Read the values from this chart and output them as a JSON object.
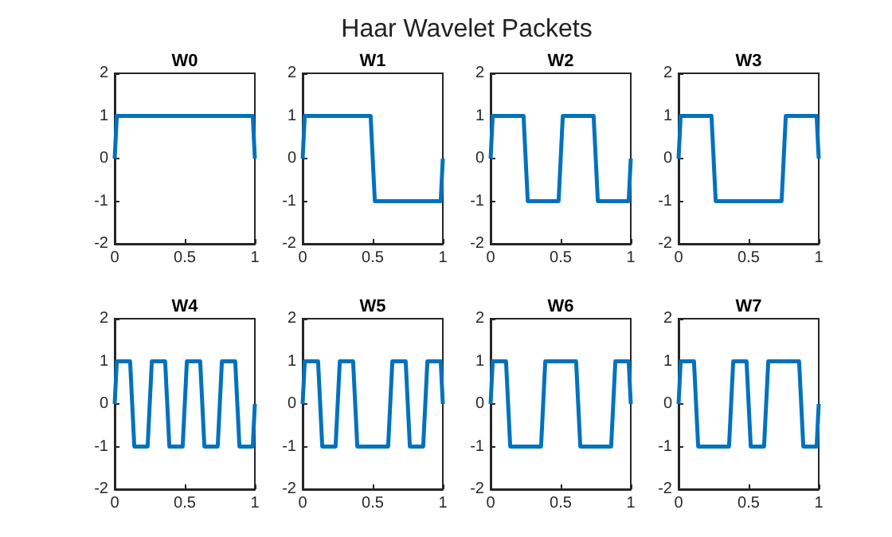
{
  "chart_data": [
    {
      "type": "line",
      "title": "W0",
      "annotations": [
        "Haar Wavelet Packets"
      ],
      "xlim": [
        0,
        1
      ],
      "xticks": [
        0,
        0.5,
        1
      ],
      "ylim": [
        -2,
        2
      ],
      "yticks": [
        -2,
        -1,
        0,
        1,
        2
      ],
      "grid": false,
      "series": [
        {
          "color": "#0072bd",
          "x": [
            0,
            0.015,
            0.985,
            1
          ],
          "values": [
            0,
            1,
            1,
            0
          ]
        }
      ]
    },
    {
      "type": "line",
      "title": "W1",
      "xlim": [
        0,
        1
      ],
      "xticks": [
        0,
        0.5,
        1
      ],
      "ylim": [
        -2,
        2
      ],
      "yticks": [
        -2,
        -1,
        0,
        1,
        2
      ],
      "grid": false,
      "series": [
        {
          "color": "#0072bd",
          "x": [
            0,
            0.015,
            0.485,
            0.515,
            0.985,
            1
          ],
          "values": [
            0,
            1,
            1,
            -1,
            -1,
            0
          ]
        }
      ]
    },
    {
      "type": "line",
      "title": "W2",
      "xlim": [
        0,
        1
      ],
      "xticks": [
        0,
        0.5,
        1
      ],
      "ylim": [
        -2,
        2
      ],
      "yticks": [
        -2,
        -1,
        0,
        1,
        2
      ],
      "grid": false,
      "series": [
        {
          "color": "#0072bd",
          "x": [
            0,
            0.015,
            0.235,
            0.265,
            0.485,
            0.515,
            0.735,
            0.765,
            0.985,
            1
          ],
          "values": [
            0,
            1,
            1,
            -1,
            -1,
            1,
            1,
            -1,
            -1,
            0
          ]
        }
      ]
    },
    {
      "type": "line",
      "title": "W3",
      "xlim": [
        0,
        1
      ],
      "xticks": [
        0,
        0.5,
        1
      ],
      "ylim": [
        -2,
        2
      ],
      "yticks": [
        -2,
        -1,
        0,
        1,
        2
      ],
      "grid": false,
      "series": [
        {
          "color": "#0072bd",
          "x": [
            0,
            0.015,
            0.235,
            0.265,
            0.735,
            0.765,
            0.985,
            1
          ],
          "values": [
            0,
            1,
            1,
            -1,
            -1,
            1,
            1,
            0
          ]
        }
      ]
    },
    {
      "type": "line",
      "title": "W4",
      "xlim": [
        0,
        1
      ],
      "xticks": [
        0,
        0.5,
        1
      ],
      "ylim": [
        -2,
        2
      ],
      "yticks": [
        -2,
        -1,
        0,
        1,
        2
      ],
      "grid": false,
      "series": [
        {
          "color": "#0072bd",
          "x": [
            0,
            0.015,
            0.11,
            0.14,
            0.235,
            0.265,
            0.36,
            0.39,
            0.485,
            0.515,
            0.61,
            0.64,
            0.735,
            0.765,
            0.86,
            0.89,
            0.985,
            1
          ],
          "values": [
            0,
            1,
            1,
            -1,
            -1,
            1,
            1,
            -1,
            -1,
            1,
            1,
            -1,
            -1,
            1,
            1,
            -1,
            -1,
            0
          ]
        }
      ]
    },
    {
      "type": "line",
      "title": "W5",
      "xlim": [
        0,
        1
      ],
      "xticks": [
        0,
        0.5,
        1
      ],
      "ylim": [
        -2,
        2
      ],
      "yticks": [
        -2,
        -1,
        0,
        1,
        2
      ],
      "grid": false,
      "series": [
        {
          "color": "#0072bd",
          "x": [
            0,
            0.015,
            0.11,
            0.14,
            0.235,
            0.265,
            0.36,
            0.39,
            0.61,
            0.64,
            0.735,
            0.765,
            0.86,
            0.89,
            0.985,
            1
          ],
          "values": [
            0,
            1,
            1,
            -1,
            -1,
            1,
            1,
            -1,
            -1,
            1,
            1,
            -1,
            -1,
            1,
            1,
            0
          ]
        }
      ]
    },
    {
      "type": "line",
      "title": "W6",
      "xlim": [
        0,
        1
      ],
      "xticks": [
        0,
        0.5,
        1
      ],
      "ylim": [
        -2,
        2
      ],
      "yticks": [
        -2,
        -1,
        0,
        1,
        2
      ],
      "grid": false,
      "series": [
        {
          "color": "#0072bd",
          "x": [
            0,
            0.015,
            0.11,
            0.14,
            0.36,
            0.39,
            0.61,
            0.64,
            0.86,
            0.89,
            0.985,
            1
          ],
          "values": [
            0,
            1,
            1,
            -1,
            -1,
            1,
            1,
            -1,
            -1,
            1,
            1,
            0
          ]
        }
      ]
    },
    {
      "type": "line",
      "title": "W7",
      "xlim": [
        0,
        1
      ],
      "xticks": [
        0,
        0.5,
        1
      ],
      "ylim": [
        -2,
        2
      ],
      "yticks": [
        -2,
        -1,
        0,
        1,
        2
      ],
      "grid": false,
      "series": [
        {
          "color": "#0072bd",
          "x": [
            0,
            0.015,
            0.11,
            0.14,
            0.36,
            0.39,
            0.485,
            0.515,
            0.61,
            0.64,
            0.86,
            0.89,
            0.985,
            1
          ],
          "values": [
            0,
            1,
            1,
            -1,
            -1,
            1,
            1,
            -1,
            -1,
            1,
            1,
            -1,
            -1,
            0
          ]
        }
      ]
    }
  ]
}
